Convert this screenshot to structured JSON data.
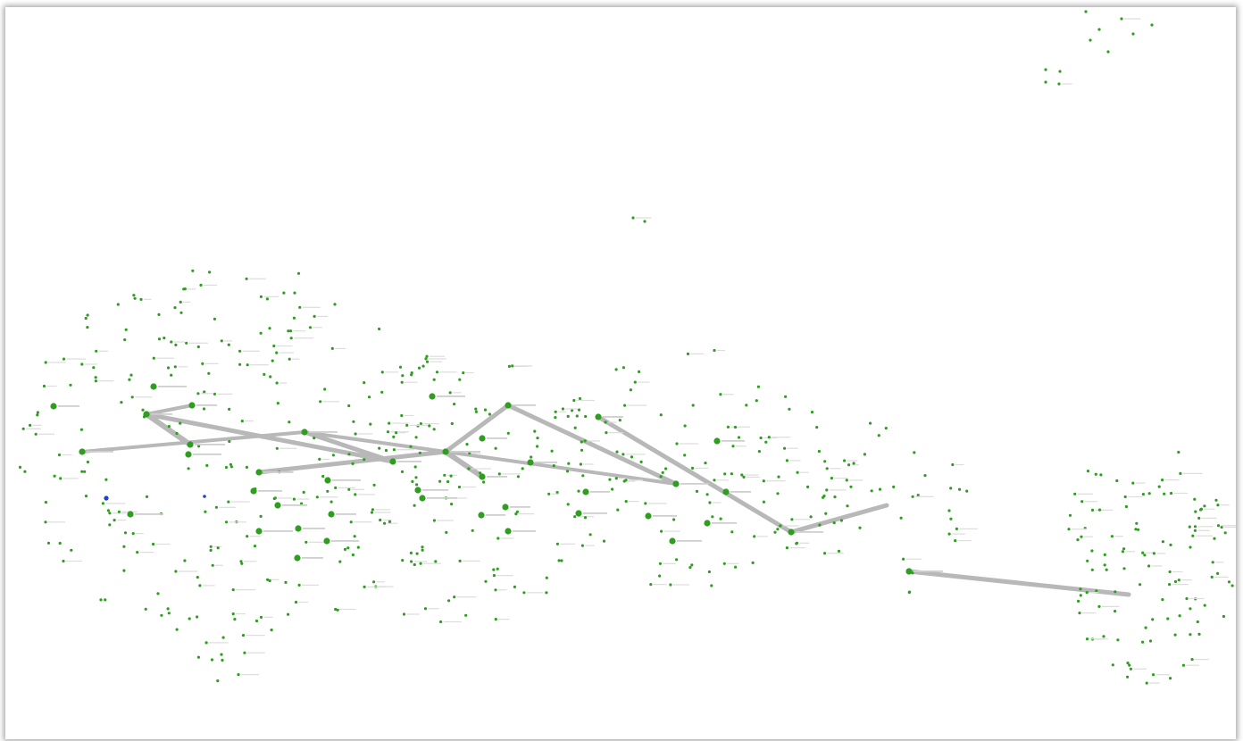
{
  "colors": {
    "node": "#2e9e1f",
    "node_highlight": "#1f3fd0",
    "edge": "#b8b8b8",
    "background": "#ffffff"
  }
}
